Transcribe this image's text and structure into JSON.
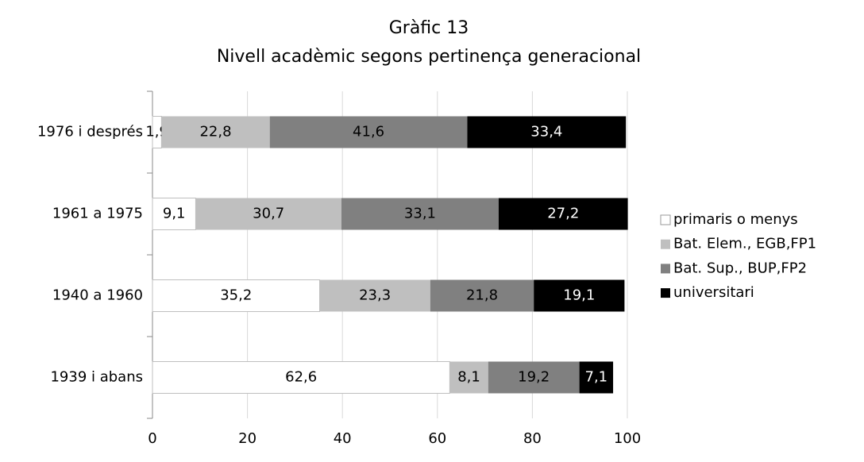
{
  "chart_data": {
    "type": "stacked-bar-horizontal",
    "title": "Gràfic 13",
    "subtitle": "Nivell acadèmic segons pertinença generacional",
    "categories": [
      "1976 i després",
      "1961 a 1975",
      "1940 a 1960",
      "1939 i abans"
    ],
    "series": [
      {
        "name": "primaris o menys",
        "color": "#ffffff",
        "values": [
          1.9,
          9.1,
          35.2,
          62.6
        ],
        "value_labels": [
          "1,9",
          "9,1",
          "35,2",
          "62,6"
        ]
      },
      {
        "name": "Bat. Elem., EGB,FP1",
        "color": "#bfbfbf",
        "values": [
          22.8,
          30.7,
          23.3,
          8.1
        ],
        "value_labels": [
          "22,8",
          "30,7",
          "23,3",
          "8,1"
        ]
      },
      {
        "name": "Bat. Sup., BUP,FP2",
        "color": "#808080",
        "values": [
          41.6,
          33.1,
          21.8,
          19.2
        ],
        "value_labels": [
          "41,6",
          "33,1",
          "21,8",
          "19,2"
        ]
      },
      {
        "name": "universitari",
        "color": "#000000",
        "values": [
          33.4,
          27.2,
          19.1,
          7.1
        ],
        "value_labels": [
          "33,4",
          "27,2",
          "19,1",
          "7,1"
        ]
      }
    ],
    "xlim": [
      0,
      100
    ],
    "xticks": [
      0,
      20,
      40,
      60,
      80,
      100
    ],
    "grid": true,
    "legend": "right"
  }
}
